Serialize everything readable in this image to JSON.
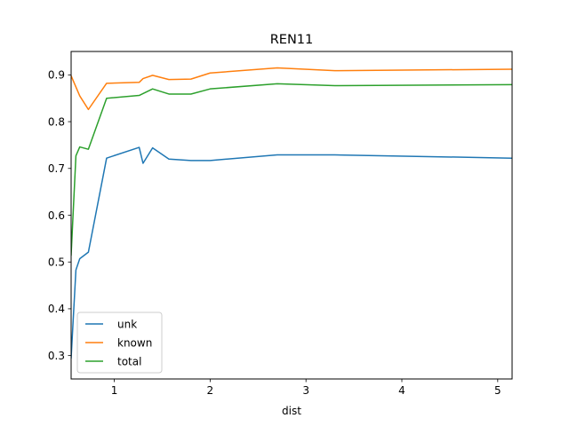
{
  "chart_data": {
    "type": "line",
    "title": "REN11",
    "xlabel": "dist",
    "ylabel": "",
    "xlim": [
      0.55,
      5.15
    ],
    "ylim": [
      0.25,
      0.95
    ],
    "xticks": [
      1,
      2,
      3,
      4,
      5
    ],
    "yticks": [
      0.3,
      0.4,
      0.5,
      0.6,
      0.7,
      0.8,
      0.9
    ],
    "grid": false,
    "legend_position": "lower-left",
    "series": [
      {
        "name": "unk",
        "color": "#1f77b4",
        "x": [
          0.55,
          0.6,
          0.64,
          0.73,
          0.92,
          1.26,
          1.3,
          1.4,
          1.57,
          1.8,
          2.0,
          2.7,
          3.3,
          5.15
        ],
        "y": [
          0.295,
          0.483,
          0.507,
          0.521,
          0.722,
          0.745,
          0.711,
          0.744,
          0.72,
          0.717,
          0.717,
          0.729,
          0.729,
          0.722
        ]
      },
      {
        "name": "known",
        "color": "#ff7f0e",
        "x": [
          0.55,
          0.64,
          0.73,
          0.92,
          1.26,
          1.3,
          1.4,
          1.57,
          1.8,
          2.0,
          2.7,
          3.3,
          5.15
        ],
        "y": [
          0.898,
          0.855,
          0.826,
          0.882,
          0.884,
          0.892,
          0.899,
          0.89,
          0.891,
          0.904,
          0.915,
          0.909,
          0.912
        ]
      },
      {
        "name": "total",
        "color": "#2ca02c",
        "x": [
          0.55,
          0.6,
          0.64,
          0.73,
          0.92,
          1.26,
          1.3,
          1.4,
          1.57,
          1.8,
          2.0,
          2.7,
          3.3,
          5.15
        ],
        "y": [
          0.515,
          0.727,
          0.746,
          0.741,
          0.85,
          0.856,
          0.86,
          0.87,
          0.859,
          0.859,
          0.87,
          0.881,
          0.877,
          0.879
        ]
      }
    ]
  }
}
